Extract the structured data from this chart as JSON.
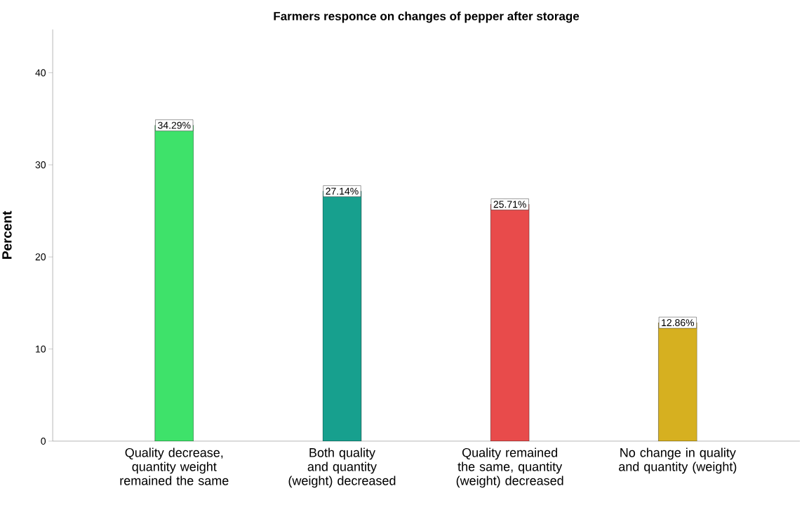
{
  "chart_data": {
    "type": "bar",
    "title": "Farmers responce on changes of pepper after storage",
    "ylabel": "Percent",
    "categories": [
      "Quality decrease, quantity weight remained the same",
      "Both quality and quantity (weight) decreased",
      "Quality remained the same, quantity (weight) decreased",
      "No change in quality and quantity (weight)"
    ],
    "values": [
      34.29,
      27.14,
      25.71,
      12.86
    ],
    "colors": [
      "#3ee26a",
      "#17a08e",
      "#e84b4b",
      "#d6b020"
    ],
    "value_labels": [
      "34.29%",
      "27.14%",
      "25.71%",
      "12.86%"
    ],
    "ylim": [
      0,
      44.7
    ],
    "yticks": [
      0,
      10,
      20,
      30,
      40
    ],
    "grid": false
  }
}
